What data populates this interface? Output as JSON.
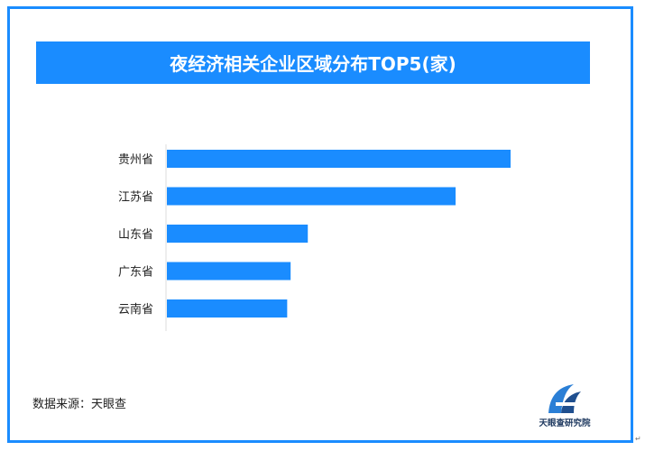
{
  "title": "夜经济相关企业区域分布TOP5(家)",
  "source": "数据来源：天眼查",
  "logo_text": "天眼查研究院",
  "corner_mark": "↵",
  "colors": {
    "accent": "#1a8cff",
    "frame": "#1a8cff",
    "bar": "#1a8cff"
  },
  "chart_data": {
    "type": "bar",
    "orientation": "horizontal",
    "title": "夜经济相关企业区域分布TOP5(家)",
    "categories": [
      "贵州省",
      "江苏省",
      "山东省",
      "广东省",
      "云南省"
    ],
    "values": [
      100,
      84,
      41,
      36,
      35
    ],
    "xlim": [
      0,
      100
    ],
    "data_labels": false,
    "axis_ticks": false,
    "grid": false
  }
}
